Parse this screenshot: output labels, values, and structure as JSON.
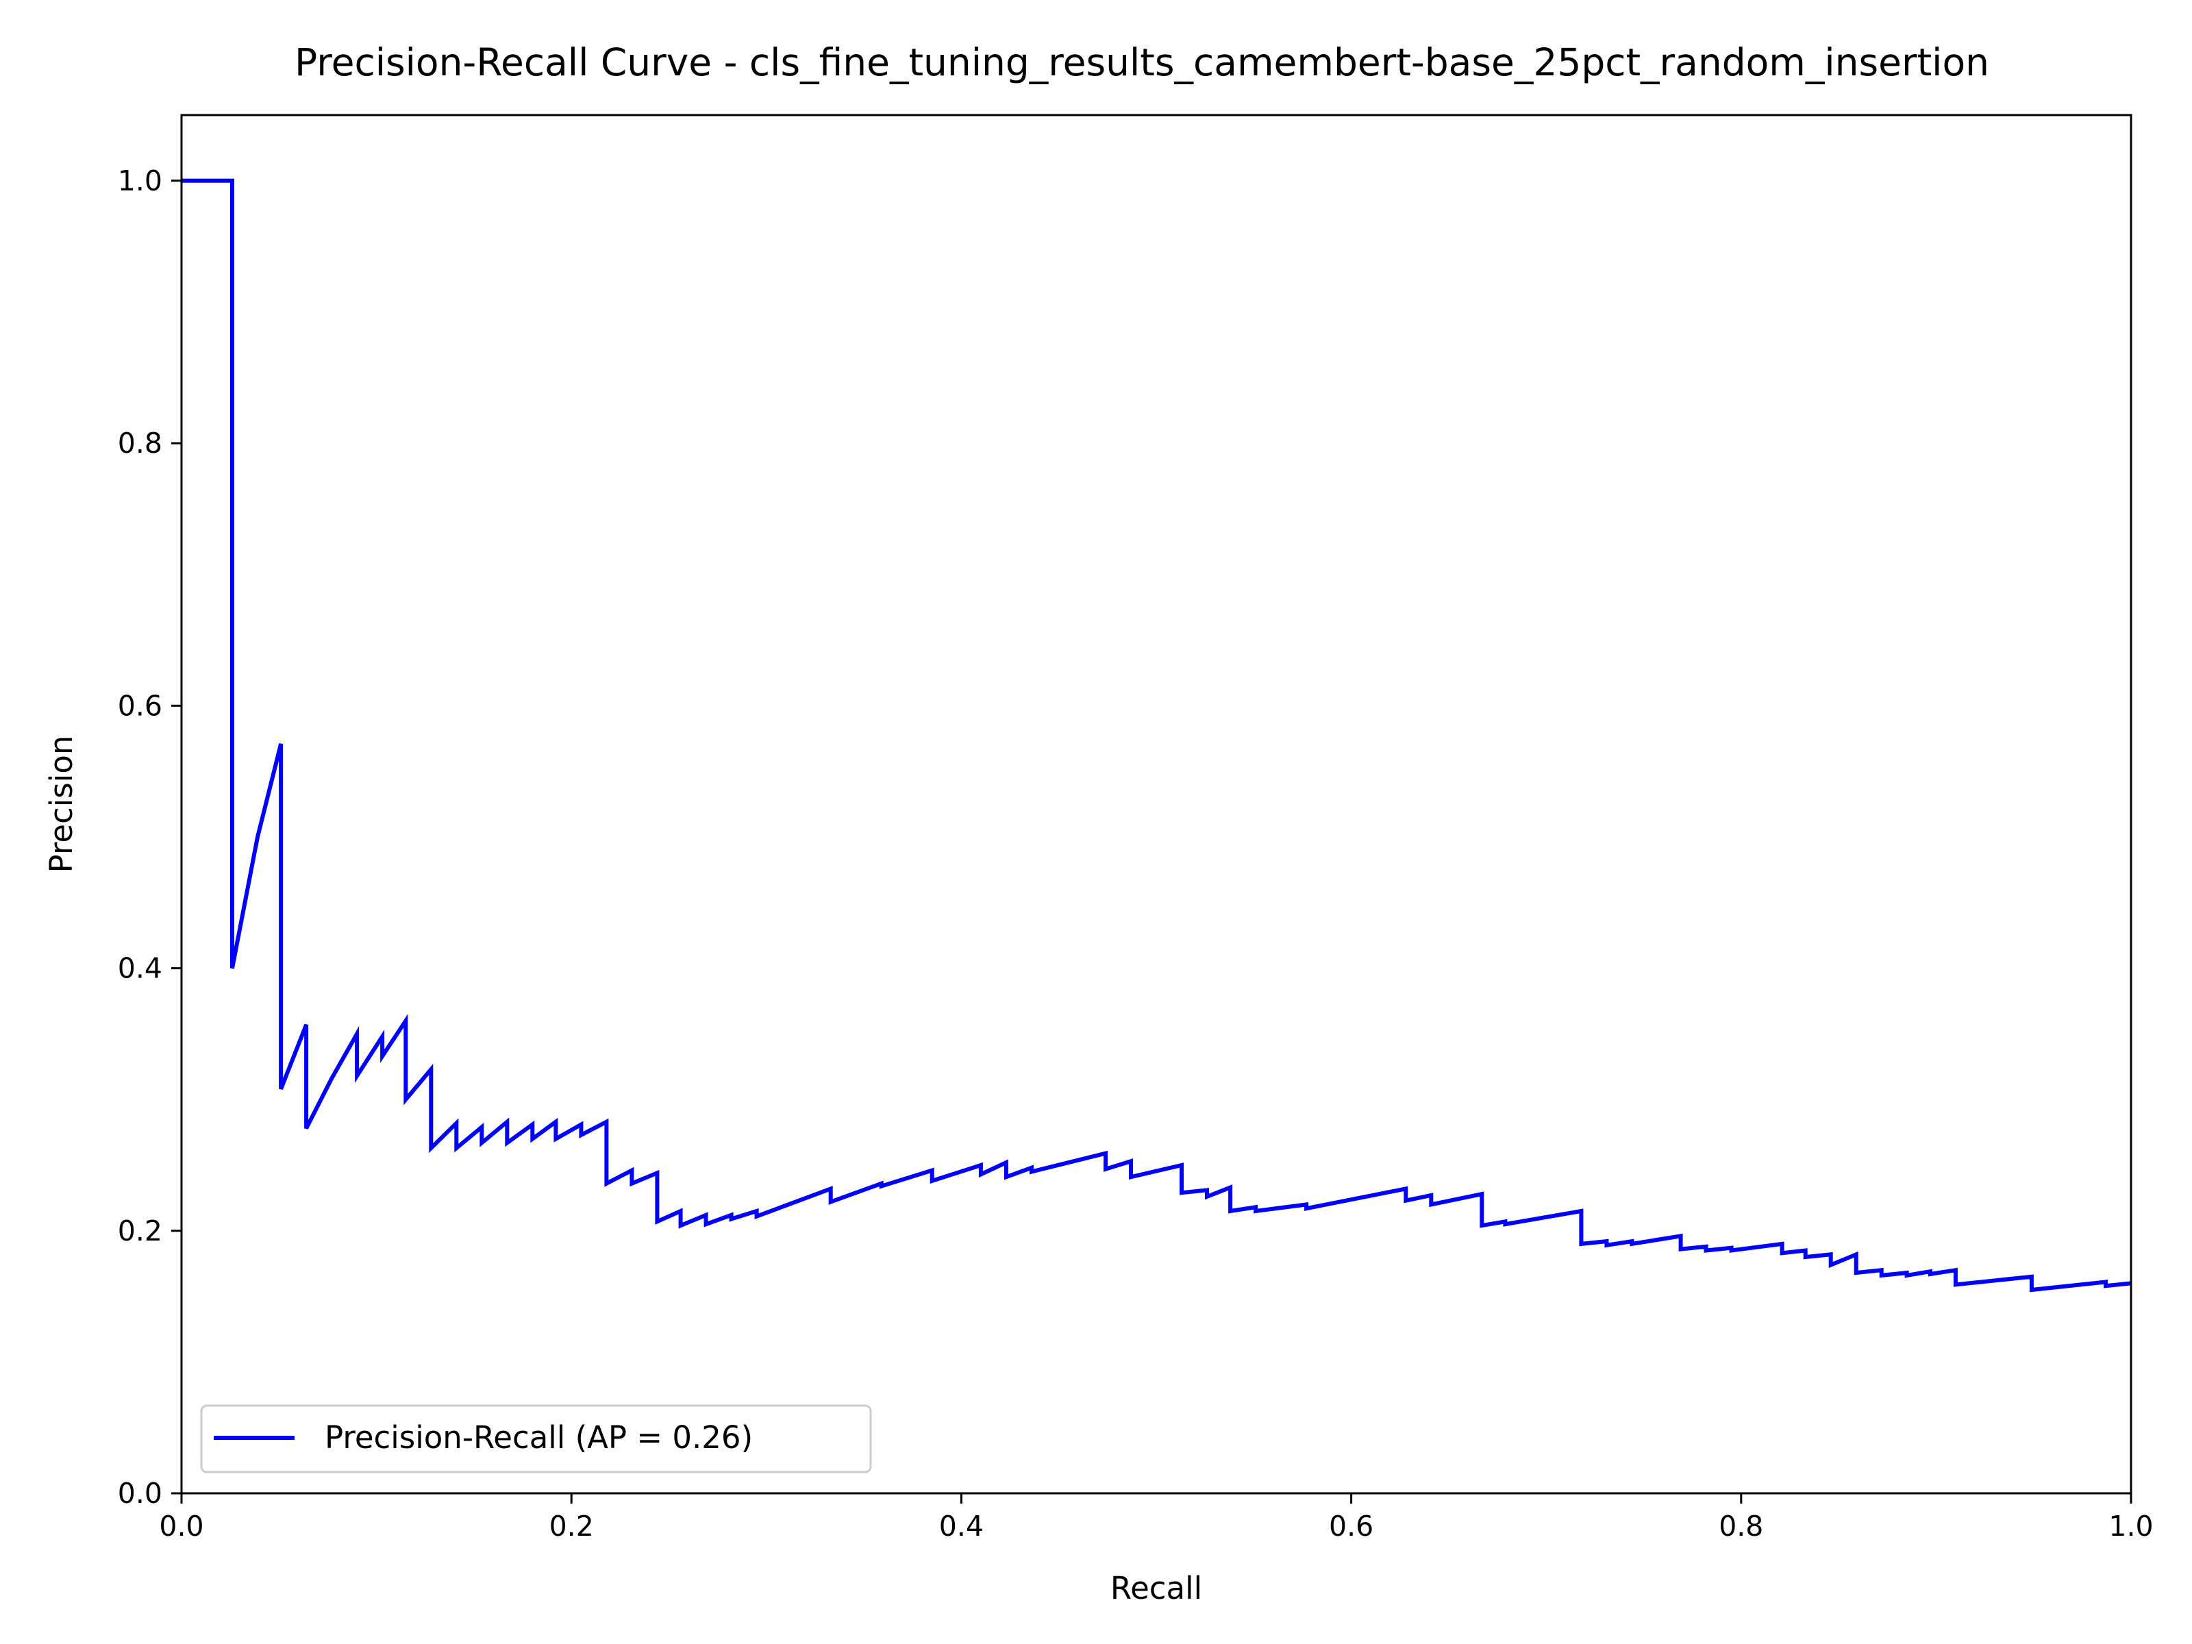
{
  "chart_data": {
    "type": "line",
    "title": "Precision-Recall Curve - cls_fine_tuning_results_camembert-base_25pct_random_insertion",
    "xlabel": "Recall",
    "ylabel": "Precision",
    "xlim": [
      0.0,
      1.0
    ],
    "ylim": [
      0.0,
      1.05
    ],
    "xticks": [
      "0.0",
      "0.2",
      "0.4",
      "0.6",
      "0.8",
      "1.0"
    ],
    "yticks": [
      "0.0",
      "0.2",
      "0.4",
      "0.6",
      "0.8",
      "1.0"
    ],
    "xtick_values": [
      0.0,
      0.2,
      0.4,
      0.6,
      0.8,
      1.0
    ],
    "ytick_values": [
      0.0,
      0.2,
      0.4,
      0.6,
      0.8,
      1.0
    ],
    "grid": false,
    "legend_position": "lower-left",
    "series": [
      {
        "name": "Precision-Recall (AP = 0.26)",
        "color": "#0000ff",
        "x": [
          0.0,
          0.026,
          0.026,
          0.039,
          0.051,
          0.051,
          0.064,
          0.064,
          0.077,
          0.09,
          0.09,
          0.103,
          0.103,
          0.115,
          0.115,
          0.128,
          0.128,
          0.141,
          0.141,
          0.154,
          0.154,
          0.167,
          0.167,
          0.18,
          0.18,
          0.192,
          0.192,
          0.205,
          0.205,
          0.218,
          0.218,
          0.231,
          0.231,
          0.244,
          0.244,
          0.256,
          0.256,
          0.269,
          0.269,
          0.282,
          0.282,
          0.295,
          0.295,
          0.333,
          0.333,
          0.359,
          0.359,
          0.385,
          0.385,
          0.41,
          0.41,
          0.423,
          0.423,
          0.436,
          0.436,
          0.474,
          0.474,
          0.487,
          0.487,
          0.513,
          0.513,
          0.526,
          0.526,
          0.538,
          0.538,
          0.551,
          0.551,
          0.577,
          0.577,
          0.628,
          0.628,
          0.641,
          0.641,
          0.667,
          0.667,
          0.679,
          0.679,
          0.718,
          0.718,
          0.731,
          0.731,
          0.744,
          0.744,
          0.769,
          0.769,
          0.782,
          0.782,
          0.795,
          0.795,
          0.821,
          0.821,
          0.833,
          0.833,
          0.846,
          0.846,
          0.859,
          0.859,
          0.872,
          0.872,
          0.885,
          0.885,
          0.897,
          0.897,
          0.91,
          0.91,
          0.949,
          0.949,
          0.987,
          0.987,
          1.0
        ],
        "y": [
          1.0,
          1.0,
          0.4,
          0.5,
          0.571,
          0.308,
          0.357,
          0.278,
          0.316,
          0.35,
          0.318,
          0.348,
          0.333,
          0.36,
          0.3,
          0.323,
          0.263,
          0.282,
          0.263,
          0.279,
          0.267,
          0.283,
          0.267,
          0.281,
          0.27,
          0.283,
          0.27,
          0.281,
          0.273,
          0.283,
          0.236,
          0.246,
          0.236,
          0.244,
          0.207,
          0.215,
          0.204,
          0.212,
          0.205,
          0.212,
          0.209,
          0.215,
          0.211,
          0.232,
          0.222,
          0.236,
          0.234,
          0.246,
          0.238,
          0.25,
          0.243,
          0.252,
          0.241,
          0.248,
          0.245,
          0.259,
          0.247,
          0.253,
          0.241,
          0.25,
          0.229,
          0.231,
          0.226,
          0.233,
          0.215,
          0.218,
          0.215,
          0.22,
          0.217,
          0.232,
          0.223,
          0.227,
          0.22,
          0.228,
          0.204,
          0.207,
          0.205,
          0.215,
          0.19,
          0.192,
          0.189,
          0.192,
          0.19,
          0.196,
          0.186,
          0.188,
          0.185,
          0.187,
          0.185,
          0.19,
          0.183,
          0.185,
          0.18,
          0.182,
          0.174,
          0.182,
          0.168,
          0.17,
          0.166,
          0.168,
          0.166,
          0.169,
          0.167,
          0.17,
          0.159,
          0.165,
          0.155,
          0.161,
          0.158,
          0.16
        ]
      }
    ]
  }
}
